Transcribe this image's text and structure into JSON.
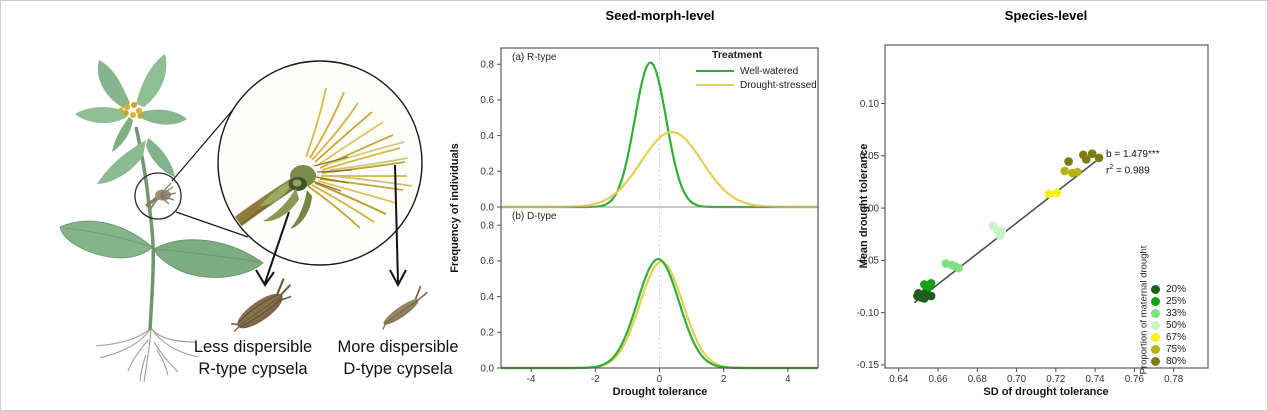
{
  "illustration": {
    "seed_labels": [
      {
        "line1": "Less dispersible",
        "line2": "R-type cypsela"
      },
      {
        "line1": "More dispersible",
        "line2": "D-type cypsela"
      }
    ]
  },
  "colors": {
    "well_watered": "#2eb135",
    "drought_stressed": "#e8cd58",
    "frame": "#5a5a5a",
    "regression": "#4d4d4d"
  },
  "chart_data": [
    {
      "type": "line",
      "title": "Seed-morph-level",
      "xlabel": "Drought tolerance",
      "ylabel": "Frequency of individuals",
      "xlim": [
        -4.94,
        4.94
      ],
      "ylim": [
        0,
        0.9
      ],
      "grid": false,
      "ref_line_x": 0,
      "x_ticks": [
        {
          "v": -4,
          "label": "-4"
        },
        {
          "v": -2,
          "label": "-2"
        },
        {
          "v": 0,
          "label": "0"
        },
        {
          "v": 2,
          "label": "2"
        },
        {
          "v": 4,
          "label": "4"
        }
      ],
      "y_ticks": [
        {
          "v": 0.0,
          "label": "0.0"
        },
        {
          "v": 0.2,
          "label": "0.2"
        },
        {
          "v": 0.4,
          "label": "0.4"
        },
        {
          "v": 0.6,
          "label": "0.6"
        },
        {
          "v": 0.8,
          "label": "0.8"
        }
      ],
      "legend": {
        "title": "Treatment",
        "position": "top-right",
        "entries": [
          {
            "label": "Well-watered",
            "color": "#2eb135"
          },
          {
            "label": "Drought-stressed",
            "color": "#e8cd58"
          }
        ]
      },
      "panels": [
        {
          "label": "(a) R-type",
          "curves": [
            {
              "name": "Well-watered",
              "color": "#2eb135",
              "mean": -0.28,
              "sd": 0.49,
              "peak": 0.81
            },
            {
              "name": "Drought-stressed",
              "color": "#e8cd58",
              "mean": 0.38,
              "sd": 0.95,
              "peak": 0.42
            }
          ]
        },
        {
          "label": "(b) D-type",
          "curves": [
            {
              "name": "Drought-stressed",
              "color": "#e8cd58",
              "mean": 0.06,
              "sd": 0.67,
              "peak": 0.595
            },
            {
              "name": "Well-watered",
              "color": "#2eb135",
              "mean": -0.04,
              "sd": 0.65,
              "peak": 0.61
            }
          ]
        }
      ]
    },
    {
      "type": "scatter",
      "title": "Species-level",
      "xlabel": "SD of drought tolerance",
      "ylabel": "Mean drought tolerance",
      "xlim": [
        0.633,
        0.7975
      ],
      "ylim": [
        -0.153,
        0.156
      ],
      "grid": false,
      "x_ticks": [
        {
          "v": 0.64,
          "label": "0.64"
        },
        {
          "v": 0.66,
          "label": "0.66"
        },
        {
          "v": 0.68,
          "label": "0.68"
        },
        {
          "v": 0.7,
          "label": "0.70"
        },
        {
          "v": 0.72,
          "label": "0.72"
        },
        {
          "v": 0.74,
          "label": "0.74"
        },
        {
          "v": 0.76,
          "label": "0.76"
        },
        {
          "v": 0.78,
          "label": "0.78"
        }
      ],
      "y_ticks": [
        {
          "v": 0.1,
          "label": "0.10"
        },
        {
          "v": 0.05,
          "label": "0.05"
        },
        {
          "v": 0.0,
          "label": "0.00"
        },
        {
          "v": -0.05,
          "label": "-0.05"
        },
        {
          "v": -0.1,
          "label": "-0.10"
        },
        {
          "v": -0.15,
          "label": "-0.15"
        }
      ],
      "annotation": {
        "slope": "b = 1.479***",
        "r2_base": "r",
        "r2_sup": "2",
        "r2_rest": " = 0.989"
      },
      "regression": {
        "x1": 0.648,
        "y1": -0.0905,
        "x2": 0.7435,
        "y2": 0.0495
      },
      "legend_title": "Proportion of maternal drought",
      "groups": [
        {
          "label": "20%",
          "color": "#1c5f1c",
          "points": [
            [
              0.6495,
              -0.084
            ],
            [
              0.65,
              -0.0815
            ],
            [
              0.6515,
              -0.0855
            ],
            [
              0.653,
              -0.0865
            ],
            [
              0.654,
              -0.08
            ],
            [
              0.655,
              -0.0835
            ],
            [
              0.6565,
              -0.084
            ]
          ]
        },
        {
          "label": "25%",
          "color": "#14a114",
          "points": [
            [
              0.653,
              -0.073
            ],
            [
              0.654,
              -0.0745
            ],
            [
              0.655,
              -0.0755
            ],
            [
              0.6565,
              -0.072
            ]
          ]
        },
        {
          "label": "33%",
          "color": "#7fe182",
          "points": [
            [
              0.664,
              -0.053
            ],
            [
              0.667,
              -0.0545
            ],
            [
              0.6685,
              -0.0555
            ],
            [
              0.6705,
              -0.0575
            ]
          ]
        },
        {
          "label": "50%",
          "color": "#c9f3c5",
          "points": [
            [
              0.688,
              -0.017
            ],
            [
              0.69,
              -0.021
            ],
            [
              0.6915,
              -0.0265
            ],
            [
              0.6925,
              -0.0225
            ]
          ]
        },
        {
          "label": "67%",
          "color": "#f8f118",
          "points": [
            [
              0.7165,
              0.0135
            ],
            [
              0.7205,
              0.0145
            ]
          ]
        },
        {
          "label": "75%",
          "color": "#b6b315",
          "points": [
            [
              0.7245,
              0.0355
            ],
            [
              0.7285,
              0.0335
            ],
            [
              0.731,
              0.0345
            ]
          ]
        },
        {
          "label": "80%",
          "color": "#7a7b10",
          "points": [
            [
              0.7265,
              0.0445
            ],
            [
              0.734,
              0.051
            ],
            [
              0.7355,
              0.0465
            ],
            [
              0.7385,
              0.052
            ],
            [
              0.742,
              0.048
            ]
          ]
        }
      ]
    }
  ]
}
